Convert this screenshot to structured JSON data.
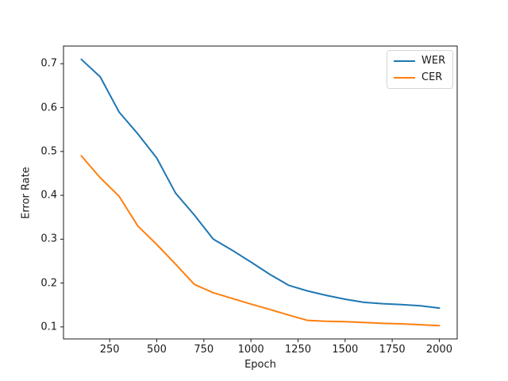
{
  "chart_data": {
    "type": "line",
    "title": "",
    "xlabel": "Epoch",
    "ylabel": "Error Rate",
    "grid": false,
    "legend_position": "upper right",
    "background_color": "#ffffff",
    "axis_color": "#1a1a1a",
    "x": [
      100,
      200,
      300,
      400,
      500,
      600,
      700,
      800,
      900,
      1000,
      1100,
      1200,
      1300,
      1400,
      1500,
      1600,
      1700,
      1800,
      1900,
      2000
    ],
    "series": [
      {
        "name": "WER",
        "color": "#1f77b4",
        "values": [
          0.71,
          0.67,
          0.59,
          0.54,
          0.485,
          0.405,
          0.355,
          0.3,
          0.275,
          0.248,
          0.22,
          0.195,
          0.182,
          0.172,
          0.163,
          0.156,
          0.153,
          0.151,
          0.148,
          0.143
        ]
      },
      {
        "name": "CER",
        "color": "#ff7f0e",
        "values": [
          0.49,
          0.44,
          0.398,
          0.33,
          0.288,
          0.243,
          0.197,
          0.178,
          0.165,
          0.152,
          0.14,
          0.127,
          0.115,
          0.113,
          0.112,
          0.11,
          0.108,
          0.107,
          0.105,
          0.103
        ]
      }
    ],
    "xlim": [
      5,
      2095
    ],
    "ylim": [
      0.0726,
      0.7404
    ],
    "x_ticks": [
      250,
      500,
      750,
      1000,
      1250,
      1500,
      1750,
      2000
    ],
    "x_tick_labels": [
      "250",
      "500",
      "750",
      "1000",
      "1250",
      "1500",
      "1750",
      "2000"
    ],
    "y_ticks": [
      0.1,
      0.2,
      0.3,
      0.4,
      0.5,
      0.6,
      0.7
    ],
    "y_tick_labels": [
      "0.1",
      "0.2",
      "0.3",
      "0.4",
      "0.5",
      "0.6",
      "0.7"
    ]
  }
}
